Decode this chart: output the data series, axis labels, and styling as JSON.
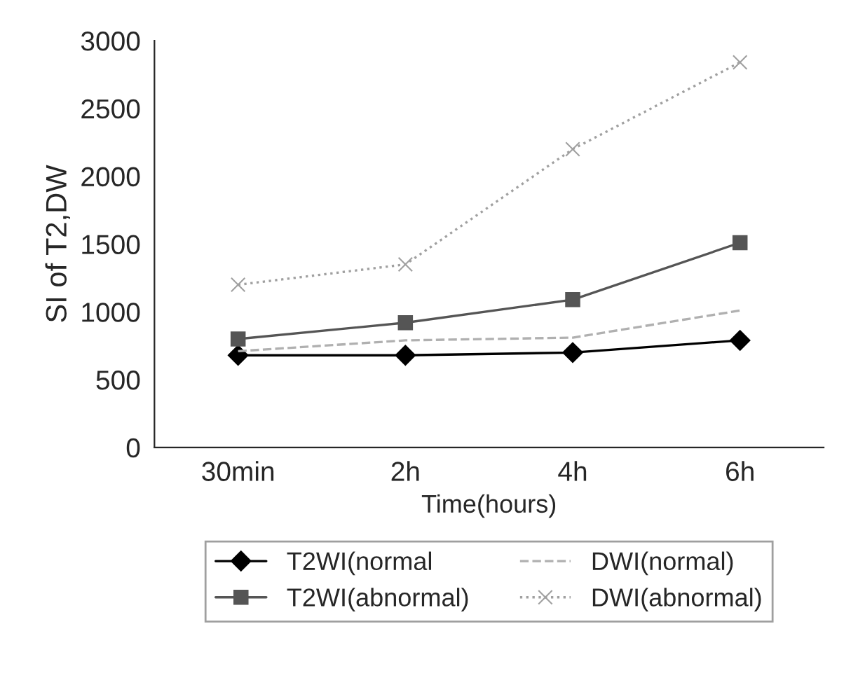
{
  "chart_data": {
    "type": "line",
    "xlabel": "Time(hours)",
    "ylabel": "SI of T2,DW",
    "categories": [
      "30min",
      "2h",
      "4h",
      "6h"
    ],
    "ylim": [
      0,
      3000
    ],
    "yticks": [
      0,
      500,
      1000,
      1500,
      2000,
      2500,
      3000
    ],
    "legend": "bottom",
    "grid": false,
    "series": [
      {
        "name": "T2WI(normal",
        "color": "#000000",
        "values": [
          680,
          680,
          700,
          790
        ],
        "marker": "diamond",
        "line_style": "solid"
      },
      {
        "name": "T2WI(abnormal)",
        "color": "#555555",
        "values": [
          800,
          920,
          1090,
          1510
        ],
        "marker": "square",
        "line_style": "solid"
      },
      {
        "name": "DWI(normal)",
        "color": "#b0b0b0",
        "values": [
          710,
          790,
          810,
          1010
        ],
        "marker": "none",
        "line_style": "dashed"
      },
      {
        "name": "DWI(abnormal)",
        "color": "#a0a0a0",
        "values": [
          1200,
          1350,
          2200,
          2840
        ],
        "marker": "cross",
        "line_style": "dotted"
      }
    ]
  }
}
